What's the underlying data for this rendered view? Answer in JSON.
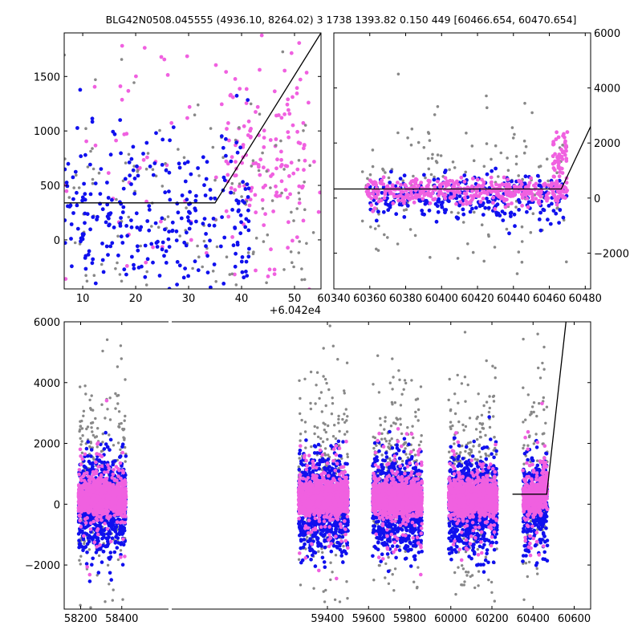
{
  "title": "BLG42N0508.045555 (4936.10, 8264.02)   3 1738 1393.82 0.150 449 [60466.654, 60470.654]",
  "colors": {
    "gray": "#888888",
    "blue": "#1010ee",
    "magenta": "#f060e0",
    "fit": "#000000"
  },
  "chart_data": [
    {
      "name": "top-left",
      "type": "scatter",
      "x_offset_label": "+6.042e4",
      "xlim": [
        6.5,
        55
      ],
      "ylim": [
        -450,
        1900
      ],
      "xticks": [
        "10",
        "20",
        "30",
        "40",
        "50"
      ],
      "xtick_values": [
        10,
        20,
        30,
        40,
        50
      ],
      "yticks": [
        "0",
        "500",
        "1000",
        "1500"
      ],
      "ytick_values": [
        0,
        500,
        1000,
        1500
      ],
      "fit_line": {
        "x": [
          6.5,
          35,
          55
        ],
        "y": [
          340,
          340,
          1900
        ]
      },
      "clusters": [
        {
          "color": "magenta",
          "x0": 6.5,
          "x1": 55,
          "ymean": 700,
          "ysd": 650,
          "n": 90
        },
        {
          "color": "magenta",
          "x0": 37,
          "x1": 52,
          "ymean": 800,
          "ysd": 350,
          "n": 110
        },
        {
          "color": "gray",
          "x0": 6.5,
          "x1": 55,
          "ymean": 200,
          "ysd": 550,
          "n": 160
        },
        {
          "color": "blue",
          "x0": 6.5,
          "x1": 35,
          "ymean": 150,
          "ysd": 400,
          "n": 240
        },
        {
          "color": "blue",
          "x0": 36,
          "x1": 42,
          "ymean": 200,
          "ysd": 450,
          "n": 60
        }
      ]
    },
    {
      "name": "top-right",
      "type": "scatter",
      "xlim": [
        60340,
        60483
      ],
      "ylim": [
        -3300,
        6000
      ],
      "xticks": [
        "60340",
        "60360",
        "60380",
        "60400",
        "60420",
        "60440",
        "60460",
        "60480"
      ],
      "xtick_values": [
        60340,
        60360,
        60380,
        60400,
        60420,
        60440,
        60460,
        60480
      ],
      "yticks": [
        "−2000",
        "0",
        "2000",
        "4000",
        "6000"
      ],
      "ytick_values": [
        -2000,
        0,
        2000,
        4000,
        6000
      ],
      "yaxis_side": "right",
      "fit_line": {
        "x": [
          60340,
          60466.65,
          60483
        ],
        "y": [
          330,
          330,
          2600
        ]
      },
      "clusters": [
        {
          "color": "gray",
          "x0": 60355,
          "x1": 60470,
          "ymean": 400,
          "ysd": 1300,
          "n": 160
        },
        {
          "color": "blue",
          "x0": 60360,
          "x1": 60470,
          "ymean": 0,
          "ysd": 450,
          "n": 300
        },
        {
          "color": "magenta",
          "x0": 60358,
          "x1": 60470,
          "ymean": 250,
          "ysd": 220,
          "n": 420
        },
        {
          "color": "magenta",
          "x0": 60462,
          "x1": 60470,
          "ymean": 1400,
          "ysd": 500,
          "n": 50
        }
      ]
    },
    {
      "name": "bottom",
      "type": "scatter",
      "xlim": [
        58120,
        60680
      ],
      "ylim": [
        -3450,
        6000
      ],
      "xticks": [
        "58200",
        "58400",
        "59400",
        "59600",
        "59800",
        "60000",
        "60200",
        "60400",
        "60600"
      ],
      "xtick_values": [
        58200,
        58400,
        59400,
        59600,
        59800,
        60000,
        60200,
        60400,
        60600
      ],
      "yticks": [
        "−2000",
        "0",
        "2000",
        "4000",
        "6000"
      ],
      "ytick_values": [
        -2000,
        0,
        2000,
        4000,
        6000
      ],
      "seasons": [
        [
          58190,
          58420
        ],
        [
          59260,
          59500
        ],
        [
          59620,
          59860
        ],
        [
          59990,
          60225
        ],
        [
          60350,
          60470
        ]
      ],
      "fit_line": {
        "x": [
          60300,
          60466.65,
          60560
        ],
        "y": [
          330,
          330,
          6000
        ]
      }
    }
  ]
}
